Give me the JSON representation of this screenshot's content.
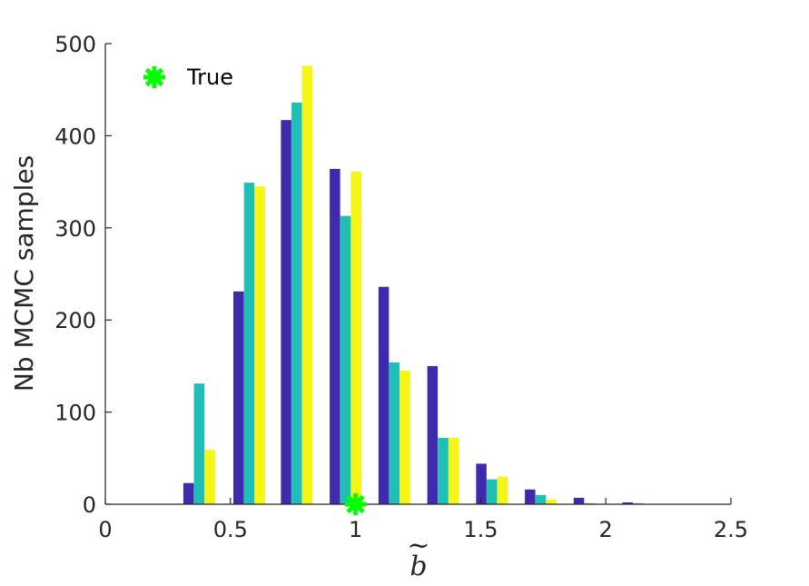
{
  "chart_data": {
    "type": "bar",
    "title": "",
    "xlabel": "b",
    "xlabel_accent": "~",
    "ylabel": "Nb MCMC samples",
    "xlim": [
      0,
      2.5
    ],
    "ylim": [
      0,
      500
    ],
    "xticks": [
      0,
      0.5,
      1,
      1.5,
      2,
      2.5
    ],
    "xtick_labels": [
      "0",
      "0.5",
      "1",
      "1.5",
      "2",
      "2.5"
    ],
    "yticks": [
      0,
      100,
      200,
      300,
      400,
      500
    ],
    "ytick_labels": [
      "0",
      "100",
      "200",
      "300",
      "400",
      "500"
    ],
    "grid": false,
    "legend_position": "top-left",
    "bin_centers": [
      0.375,
      0.575,
      0.765,
      0.96,
      1.155,
      1.35,
      1.545,
      1.74,
      1.935,
      2.13
    ],
    "series": [
      {
        "color": "#3f2aad",
        "values": [
          23,
          231,
          417,
          364,
          236,
          150,
          44,
          16,
          7,
          2
        ]
      },
      {
        "color": "#1fbfb8",
        "values": [
          131,
          349,
          436,
          313,
          154,
          72,
          27,
          10,
          1,
          1
        ]
      },
      {
        "color": "#f6f616",
        "values": [
          59,
          345,
          476,
          361,
          145,
          72,
          30,
          5,
          0,
          0
        ]
      }
    ],
    "markers": [
      {
        "name": "True",
        "x": 1.0,
        "y": 0,
        "color": "#00ff00",
        "symbol": "asterisk"
      }
    ],
    "legend": [
      {
        "label": "True",
        "color": "#00ff00",
        "symbol": "asterisk"
      }
    ]
  }
}
